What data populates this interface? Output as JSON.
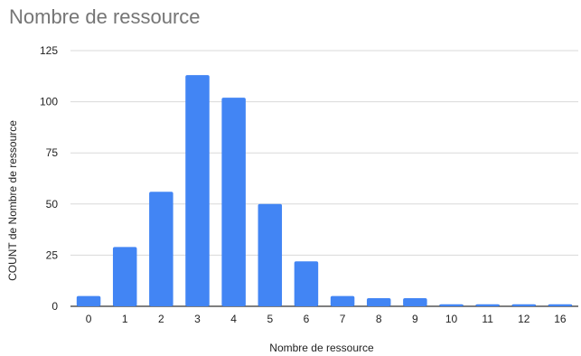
{
  "chart_data": {
    "type": "bar",
    "title": "Nombre de ressource",
    "xlabel": "Nombre de ressource",
    "ylabel": "COUNT de Nombre de ressource",
    "categories": [
      "0",
      "1",
      "2",
      "3",
      "4",
      "5",
      "6",
      "7",
      "8",
      "9",
      "10",
      "11",
      "12",
      "16"
    ],
    "values": [
      5,
      29,
      56,
      113,
      102,
      50,
      22,
      5,
      4,
      4,
      1,
      1,
      1,
      1
    ],
    "ylim": [
      0,
      125
    ],
    "yticks": [
      0,
      25,
      50,
      75,
      100,
      125
    ],
    "grid": true,
    "bar_color": "#4285f4",
    "grid_color": "#d9d9d9"
  }
}
